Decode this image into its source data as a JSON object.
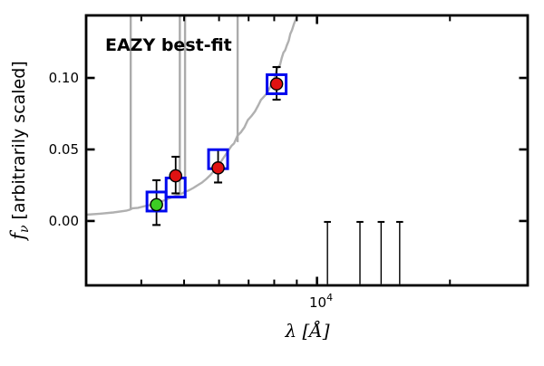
{
  "figure": {
    "annotation": "EAZY best-fit",
    "colors": {
      "annotation": "#ee0000",
      "spectrum": "#b0b0b0",
      "emission_line": "#ababab",
      "template_marker": "#0008ee",
      "observed_marker": "#e01212",
      "detection_green": "#3ccc23",
      "frame": "#000000"
    },
    "axes": {
      "xlabel": "λ [Å]",
      "ylabel": {
        "prefix": "f",
        "sub": "ν",
        "suffix": "[arbitrarily scaled]"
      },
      "x_scale": "log",
      "x_major_ticks": [
        {
          "value": 10000,
          "base": "10",
          "exp": "4"
        }
      ],
      "x_minor_ticks": [
        4000,
        5000,
        6000,
        7000,
        8000,
        9000,
        20000
      ],
      "y_ticks": [
        {
          "value": 0.0,
          "label": "0.00"
        },
        {
          "value": 0.05,
          "label": "0.05"
        },
        {
          "value": 0.1,
          "label": "0.10"
        }
      ]
    },
    "chart_data": {
      "type": "line",
      "title": "EAZY best-fit",
      "xlabel": "λ [Å]",
      "ylabel": "fν [arbitrarily scaled]",
      "x_scale": "log",
      "xlim": [
        3000,
        30000
      ],
      "ylim": [
        -0.045,
        0.1437
      ],
      "grid": false,
      "legend": "none",
      "series": [
        {
          "name": "best-fit-template-spectrum",
          "type": "line",
          "color": "#b0b0b0",
          "x": [
            3000,
            3220,
            3460,
            3710,
            3765,
            3820,
            3930,
            4075,
            4230,
            4310,
            4430,
            4580,
            4705,
            4860,
            4950,
            5015,
            5130,
            5245,
            5365,
            5490,
            5615,
            5745,
            5875,
            6010,
            6145,
            6285,
            6400,
            6490,
            6605,
            6725,
            6850,
            6975,
            7105,
            7235,
            7365,
            7465,
            7605,
            7705,
            7810,
            7915,
            8025,
            8095,
            8170,
            8245,
            8320,
            8395,
            8470,
            8545,
            8625,
            8700,
            8780,
            8860,
            8940,
            9020
          ],
          "y": [
            0.0044,
            0.0051,
            0.006,
            0.0073,
            0.0079,
            0.0089,
            0.0092,
            0.0104,
            0.0114,
            0.0123,
            0.0136,
            0.0152,
            0.0168,
            0.0184,
            0.0193,
            0.0203,
            0.0215,
            0.0231,
            0.025,
            0.0269,
            0.0294,
            0.0323,
            0.0358,
            0.0399,
            0.0443,
            0.0487,
            0.0525,
            0.0543,
            0.0596,
            0.062,
            0.0655,
            0.0706,
            0.0734,
            0.0766,
            0.081,
            0.0846,
            0.0873,
            0.0893,
            0.093,
            0.0968,
            0.1006,
            0.1052,
            0.1076,
            0.109,
            0.1139,
            0.1177,
            0.1193,
            0.1228,
            0.1259,
            0.1308,
            0.1335,
            0.1373,
            0.1405,
            0.1437
          ]
        },
        {
          "name": "template-emission-lines-clipped-at-top",
          "type": "vline",
          "color": "#ababab",
          "lines": [
            {
              "x": 3785,
              "y_bottom": 0.008
            },
            {
              "x": 4890,
              "y_bottom": 0.0184
            },
            {
              "x": 5025,
              "y_bottom": 0.0199
            },
            {
              "x": 6610,
              "y_bottom": 0.0551
            }
          ]
        },
        {
          "name": "template-photometry",
          "type": "scatter",
          "marker": "open-square",
          "color": "#0008ee",
          "points": [
            {
              "x": 4330,
              "y": 0.0136
            },
            {
              "x": 4785,
              "y": 0.0234
            },
            {
              "x": 5970,
              "y": 0.0432
            },
            {
              "x": 8100,
              "y": 0.0956
            }
          ]
        },
        {
          "name": "observed-photometry",
          "type": "scatter",
          "marker": "filled-circle",
          "points": [
            {
              "x": 4330,
              "y": 0.0114,
              "yerr_plus": 0.0171,
              "yerr_minus": 0.0142,
              "color": "#3ccc23"
            },
            {
              "x": 4785,
              "y": 0.0316,
              "yerr_plus": 0.0133,
              "yerr_minus": 0.0123,
              "color": "#e01212"
            },
            {
              "x": 5970,
              "y": 0.0371,
              "yerr_plus": 0.0126,
              "yerr_minus": 0.0102,
              "color": "#e01212"
            },
            {
              "x": 8100,
              "y": 0.0958,
              "yerr_plus": 0.0118,
              "yerr_minus": 0.011,
              "color": "#e01212"
            }
          ]
        },
        {
          "name": "undetected-bands-error-caps",
          "type": "errorbar-only",
          "color": "#000000",
          "cap_y": 0.0,
          "x": [
            10560,
            12510,
            13970,
            15390
          ],
          "note": "error bars extend below plot bottom"
        }
      ]
    }
  }
}
